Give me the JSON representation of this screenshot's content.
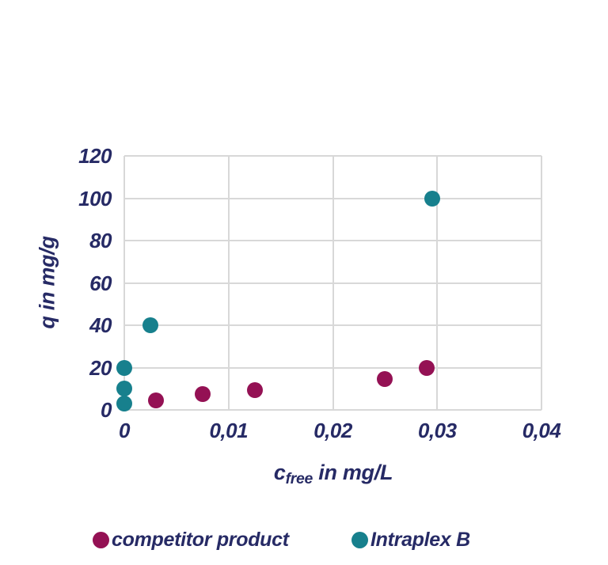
{
  "colors": {
    "text_navy": "#262A65",
    "grid_gray": "#D8D8D8",
    "background": "#FFFFFF",
    "competitor_magenta": "#941154",
    "intraplex_teal": "#17808D"
  },
  "chart_data": {
    "type": "scatter",
    "title": "",
    "xlabel": "c_free in mg/L",
    "xlabel_parts": {
      "symbol": "c",
      "sub": "free",
      "rest": " in mg/L"
    },
    "ylabel": "q in mg/g",
    "xlim": [
      0,
      0.04
    ],
    "ylim": [
      0,
      120
    ],
    "grid": true,
    "legend_position": "bottom",
    "xticks": [
      0,
      0.01,
      0.02,
      0.03,
      0.04
    ],
    "xtick_labels": [
      "0",
      "0,01",
      "0,02",
      "0,03",
      "0,04"
    ],
    "yticks": [
      0,
      20,
      40,
      60,
      80,
      100,
      120
    ],
    "ytick_labels": [
      "0",
      "20",
      "40",
      "60",
      "80",
      "100",
      "120"
    ],
    "series": [
      {
        "name": "competitor product",
        "color": "#941154",
        "points": [
          [
            0.003,
            4.5
          ],
          [
            0.0075,
            7.5
          ],
          [
            0.0125,
            9.5
          ],
          [
            0.025,
            14.5
          ],
          [
            0.029,
            20
          ]
        ]
      },
      {
        "name": "Intraplex B",
        "color": "#17808D",
        "points": [
          [
            0,
            3
          ],
          [
            0,
            10
          ],
          [
            0,
            20
          ],
          [
            0.0025,
            40
          ],
          [
            0.0295,
            100
          ]
        ]
      }
    ]
  },
  "legend": {
    "items": [
      {
        "label": "competitor product"
      },
      {
        "label": "Intraplex B"
      }
    ]
  }
}
